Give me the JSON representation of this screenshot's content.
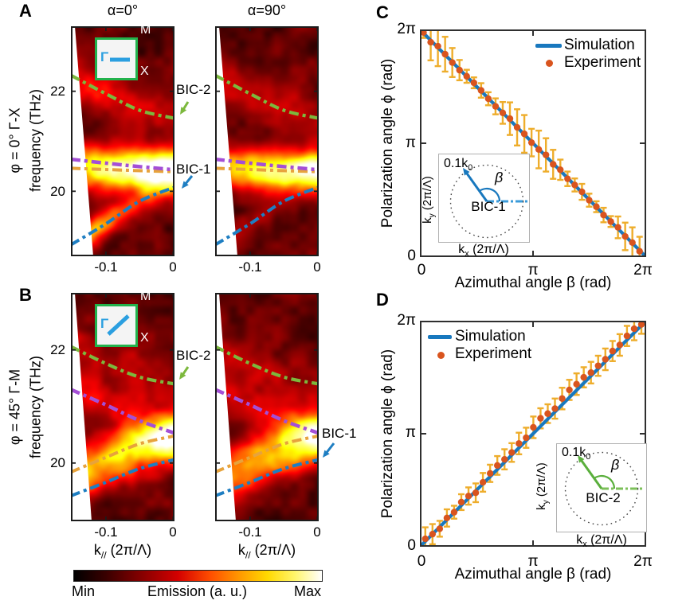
{
  "colors": {
    "simulation_blue": "#1878be",
    "experiment_orange": "#d9541e",
    "errorbar_gold": "#eead2b",
    "bic2_green": "#7cb83d",
    "purple": "#a44fd6",
    "orange_band": "#e7a33c",
    "bic1_blue": "#1e7ec2",
    "inset_border_green": "#22b24c",
    "inset_blue": "#2b9fe0",
    "inset_arrow_green": "#5aaf3c"
  },
  "panels": {
    "A": {
      "label": "A",
      "titles": [
        "α=0°",
        "α=90°"
      ],
      "row_label": "φ = 0°  Γ-X",
      "freq_label": "frequency (THz)",
      "yticks": [
        "22",
        "20"
      ],
      "xticks": [
        "-0.1",
        "0"
      ],
      "bic2_label": "BIC-2",
      "bic1_label": "BIC-1",
      "inset": {
        "gamma": "Γ",
        "m_label": "M",
        "x_label": "X"
      }
    },
    "B": {
      "label": "B",
      "row_label": "φ = 45°  Γ-M",
      "freq_label": "frequency (THz)",
      "yticks": [
        "22",
        "20"
      ],
      "xticks": [
        "-0.1",
        "0"
      ],
      "bic2_label": "BIC-2",
      "bic1_label": "BIC-1",
      "inset": {
        "gamma": "Γ",
        "m_label": "M",
        "x_label": "X"
      }
    },
    "C": {
      "label": "C",
      "legend": {
        "simulation": "Simulation",
        "experiment": "Experiment"
      },
      "ylabel": "Polarization angle ϕ (rad)",
      "xlabel": "Azimuthal angle β (rad)",
      "yticks": [
        "2π",
        "π",
        "0"
      ],
      "xticks": [
        "0",
        "π",
        "2π"
      ],
      "inset": {
        "radius_label": "0.1k",
        "radius_sub": "0",
        "beta": "β",
        "bic": "BIC-1",
        "ky_base": "k",
        "ky_sub": "y",
        "ky_unit": " (2π/Λ)",
        "kx_base": "k",
        "kx_sub": "x",
        "kx_unit": " (2π/Λ)"
      }
    },
    "D": {
      "label": "D",
      "legend": {
        "simulation": "Simulation",
        "experiment": "Experiment"
      },
      "ylabel": "Polarization angle ϕ (rad)",
      "xlabel": "Azimuthal angle β (rad)",
      "yticks": [
        "2π",
        "π",
        "0"
      ],
      "xticks": [
        "0",
        "π",
        "2π"
      ],
      "inset": {
        "radius_label": "0.1k",
        "radius_sub": "0",
        "beta": "β",
        "bic": "BIC-2",
        "ky_base": "k",
        "ky_sub": "y",
        "ky_unit": " (2π/Λ)",
        "kx_base": "k",
        "kx_sub": "x",
        "kx_unit": " (2π/Λ)"
      }
    }
  },
  "kaxis": {
    "base": "k",
    "sub": "//",
    "unit": " (2π/Λ)"
  },
  "colorbar": {
    "min": "Min",
    "label": "Emission (a. u.)",
    "max": "Max"
  },
  "chart_data": [
    {
      "id": "A",
      "type": "heatmap",
      "subpanels": [
        "α=0°",
        "α=90°"
      ],
      "xlabel": "k// (2π/Λ)",
      "ylabel": "frequency (THz)",
      "xlim": [
        -0.152,
        0.002
      ],
      "ylim": [
        18.7,
        23.3
      ],
      "xticks": [
        -0.1,
        0
      ],
      "yticks": [
        22,
        20
      ],
      "curves": {
        "bic2": [
          [
            -0.152,
            22.32
          ],
          [
            -0.1,
            21.95
          ],
          [
            -0.05,
            21.62
          ],
          [
            0.002,
            21.46
          ]
        ],
        "purple": [
          [
            -0.152,
            20.64
          ],
          [
            -0.07,
            20.52
          ],
          [
            0.002,
            20.43
          ]
        ],
        "orange": [
          [
            -0.152,
            20.46
          ],
          [
            -0.07,
            20.42
          ],
          [
            0.002,
            20.39
          ]
        ],
        "bic1": [
          [
            -0.152,
            18.93
          ],
          [
            -0.1,
            19.35
          ],
          [
            -0.05,
            19.8
          ],
          [
            0.002,
            20.08
          ]
        ]
      },
      "annotations": [
        "BIC-2",
        "BIC-1"
      ]
    },
    {
      "id": "B",
      "type": "heatmap",
      "subpanels": [
        "α=0°",
        "α=90°"
      ],
      "xlabel": "k// (2π/Λ)",
      "ylabel": "frequency (THz)",
      "xlim": [
        -0.152,
        0.002
      ],
      "ylim": [
        18.97,
        23.01
      ],
      "xticks": [
        -0.1,
        0
      ],
      "yticks": [
        22,
        20
      ],
      "curves": {
        "bic2": [
          [
            -0.152,
            22.06
          ],
          [
            -0.1,
            21.76
          ],
          [
            -0.05,
            21.52
          ],
          [
            0.002,
            21.4
          ]
        ],
        "purple": [
          [
            -0.152,
            21.3
          ],
          [
            -0.1,
            21.03
          ],
          [
            -0.05,
            20.75
          ],
          [
            0.002,
            20.53
          ]
        ],
        "orange": [
          [
            -0.152,
            19.84
          ],
          [
            -0.1,
            20.1
          ],
          [
            -0.05,
            20.34
          ],
          [
            0.002,
            20.48
          ]
        ],
        "bic1": [
          [
            -0.152,
            19.42
          ],
          [
            -0.1,
            19.66
          ],
          [
            -0.05,
            19.9
          ],
          [
            0.002,
            20.06
          ]
        ]
      },
      "annotations": [
        "BIC-2",
        "BIC-1"
      ]
    },
    {
      "id": "C",
      "type": "line+scatter",
      "xlabel": "Azimuthal angle β (rad)",
      "ylabel": "Polarization angle ϕ (rad)",
      "xlim": [
        0,
        6.2832
      ],
      "ylim": [
        0,
        6.2832
      ],
      "xticks": [
        0,
        3.1416,
        6.2832
      ],
      "yticks": [
        0,
        3.1416,
        6.2832
      ],
      "legend_position": "top-right",
      "simulation": {
        "x": [
          0,
          6.2832
        ],
        "y": [
          6.2832,
          0
        ]
      },
      "experiment": {
        "beta": [
          0.1,
          0.3,
          0.5,
          0.7,
          0.9,
          1.1,
          1.3,
          1.5,
          1.7,
          1.9,
          2.1,
          2.3,
          2.5,
          2.7,
          2.9,
          3.1,
          3.3,
          3.5,
          3.7,
          3.9,
          4.1,
          4.3,
          4.5,
          4.7,
          4.9,
          5.1,
          5.3,
          5.5,
          5.7,
          5.9,
          6.1
        ],
        "phi": [
          6.2,
          5.93,
          5.82,
          5.6,
          5.37,
          5.16,
          4.99,
          4.81,
          4.6,
          4.37,
          4.16,
          3.98,
          3.82,
          3.58,
          3.4,
          3.16,
          2.97,
          2.82,
          2.56,
          2.41,
          2.16,
          1.99,
          1.8,
          1.57,
          1.39,
          1.16,
          0.98,
          0.82,
          0.57,
          0.4,
          0.16
        ],
        "err": [
          0.15,
          0.5,
          0.55,
          0.48,
          0.4,
          0.28,
          0.18,
          0.15,
          0.2,
          0.18,
          0.22,
          0.3,
          0.45,
          0.5,
          0.52,
          0.38,
          0.52,
          0.46,
          0.4,
          0.28,
          0.2,
          0.18,
          0.22,
          0.18,
          0.15,
          0.2,
          0.15,
          0.3,
          0.38,
          0.42,
          0.4
        ]
      }
    },
    {
      "id": "D",
      "type": "line+scatter",
      "xlabel": "Azimuthal angle β (rad)",
      "ylabel": "Polarization angle ϕ (rad)",
      "xlim": [
        0,
        6.2832
      ],
      "ylim": [
        0,
        6.2832
      ],
      "xticks": [
        0,
        3.1416,
        6.2832
      ],
      "yticks": [
        0,
        3.1416,
        6.2832
      ],
      "legend_position": "top-left",
      "simulation": {
        "x": [
          0,
          6.2832
        ],
        "y": [
          0,
          6.2832
        ]
      },
      "experiment": {
        "beta": [
          0.15,
          0.35,
          0.55,
          0.75,
          0.95,
          1.15,
          1.35,
          1.55,
          1.75,
          1.95,
          2.15,
          2.35,
          2.55,
          2.75,
          2.95,
          3.15,
          3.35,
          3.55,
          3.75,
          3.95,
          4.15,
          4.35,
          4.55,
          4.75,
          4.95,
          5.15,
          5.35,
          5.55,
          5.75,
          5.95,
          6.15
        ],
        "phi": [
          0.22,
          0.35,
          0.5,
          0.8,
          0.96,
          1.24,
          1.41,
          1.5,
          1.79,
          2.04,
          2.26,
          2.43,
          2.62,
          2.87,
          3.03,
          3.32,
          3.57,
          3.7,
          3.84,
          4.12,
          4.36,
          4.52,
          4.71,
          4.84,
          5.03,
          5.21,
          5.44,
          5.61,
          5.86,
          6.06,
          6.18
        ],
        "err": [
          0.32,
          0.28,
          0.22,
          0.24,
          0.18,
          0.22,
          0.24,
          0.26,
          0.26,
          0.24,
          0.26,
          0.28,
          0.26,
          0.3,
          0.28,
          0.3,
          0.28,
          0.26,
          0.28,
          0.3,
          0.28,
          0.3,
          0.28,
          0.3,
          0.28,
          0.3,
          0.28,
          0.3,
          0.28,
          0.32,
          0.26
        ]
      }
    }
  ]
}
